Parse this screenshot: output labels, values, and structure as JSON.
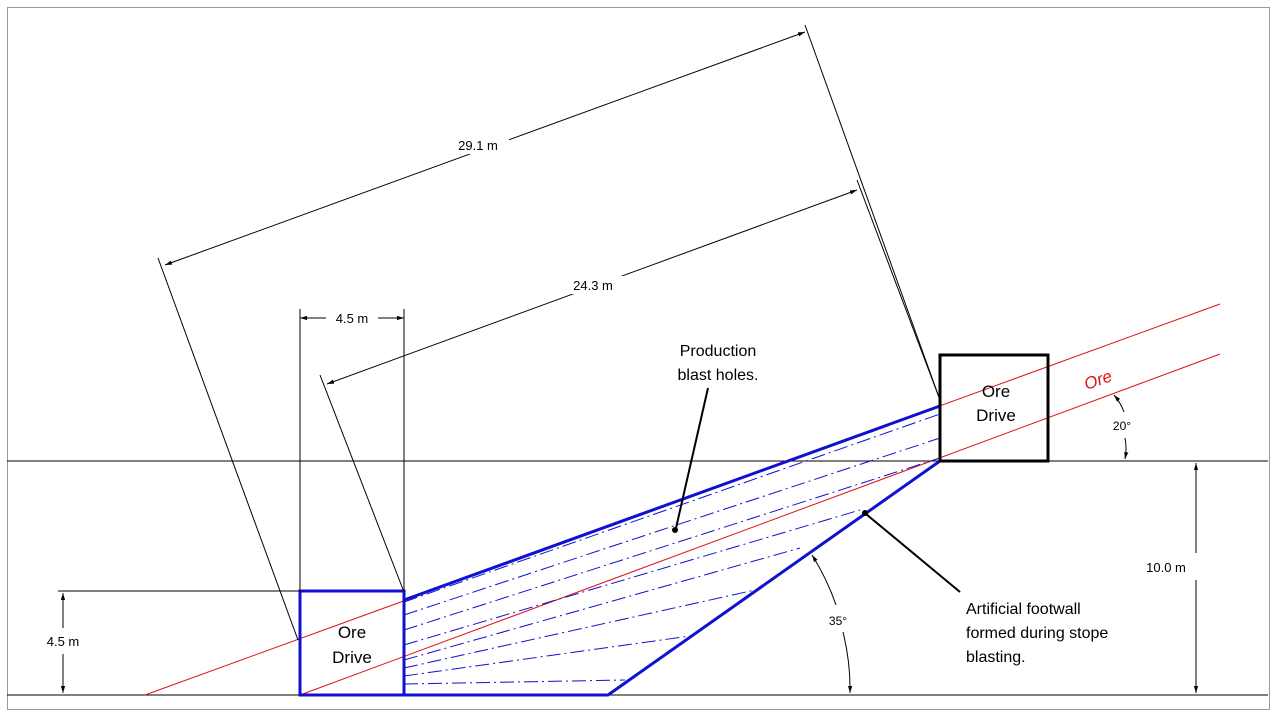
{
  "diagram": {
    "dimensions": {
      "d_29_1": "29.1 m",
      "d_24_3": "24.3 m",
      "d_4_5_top": "4.5 m",
      "d_4_5_left": "4.5 m",
      "d_10_0": "10.0 m"
    },
    "angles": {
      "a_20": "20°",
      "a_35": "35°"
    },
    "drives": {
      "left": [
        "Ore",
        "Drive"
      ],
      "right": [
        "Ore",
        "Drive"
      ]
    },
    "ore_label": "Ore",
    "notes": {
      "production": [
        "Production",
        "blast holes."
      ],
      "footwall": [
        "Artificial footwall",
        "formed during stope",
        "blasting."
      ]
    },
    "colors": {
      "stope": "#1010d0",
      "ore": "#e01010",
      "line": "#000000"
    }
  }
}
